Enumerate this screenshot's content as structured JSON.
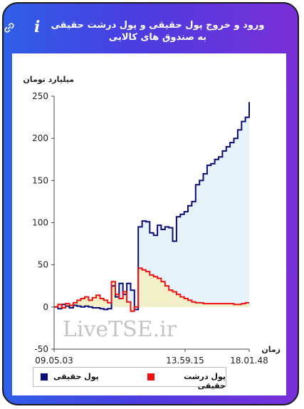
{
  "header": {
    "title": "ورود و خروج پول حقیقی و پول درشت حقیقی به صندوق های کالایی",
    "info_icon": "info-icon",
    "link_icon": "link-icon",
    "info_glyph": "i"
  },
  "watermark": "LiveTSE.ir",
  "legend": {
    "items": [
      {
        "label": "پول حقیقی",
        "color": "#0a0a7a"
      },
      {
        "label": "پول درشت حقیقی",
        "color": "#ee1111"
      }
    ]
  },
  "chart_data": {
    "type": "area",
    "ylabel": "میلیارد تومان",
    "xlabel": "زمان",
    "ylim": [
      -50,
      250
    ],
    "yticks": [
      -50,
      0,
      50,
      100,
      150,
      200,
      250
    ],
    "xticks": [
      "09.05.03",
      "13.59.15",
      "18.01.48"
    ],
    "grid": false,
    "legend_position": "bottom",
    "series": [
      {
        "name": "پول حقیقی",
        "color": "#0a0a7a",
        "fill": "#e6f3fb",
        "values": [
          0,
          -2,
          3,
          1,
          -1,
          2,
          1,
          0,
          1,
          0,
          -1,
          -1,
          -2,
          -3,
          -2,
          25,
          12,
          28,
          15,
          28,
          20,
          -3,
          95,
          102,
          101,
          88,
          85,
          97,
          92,
          95,
          94,
          78,
          107,
          110,
          113,
          120,
          125,
          145,
          150,
          158,
          168,
          170,
          175,
          178,
          185,
          190,
          195,
          200,
          210,
          220,
          225,
          243
        ]
      },
      {
        "name": "پول درشت حقیقی",
        "color": "#ee1111",
        "fill": "#f2eec0",
        "values": [
          0,
          3,
          -1,
          4,
          2,
          5,
          8,
          10,
          12,
          8,
          11,
          14,
          10,
          8,
          5,
          30,
          15,
          10,
          18,
          6,
          -5,
          0,
          46,
          44,
          42,
          38,
          36,
          34,
          30,
          25,
          20,
          18,
          15,
          12,
          10,
          8,
          6,
          5,
          5,
          4,
          4,
          4,
          4,
          4,
          4,
          4,
          4,
          3,
          3,
          4,
          5,
          5
        ]
      }
    ]
  }
}
